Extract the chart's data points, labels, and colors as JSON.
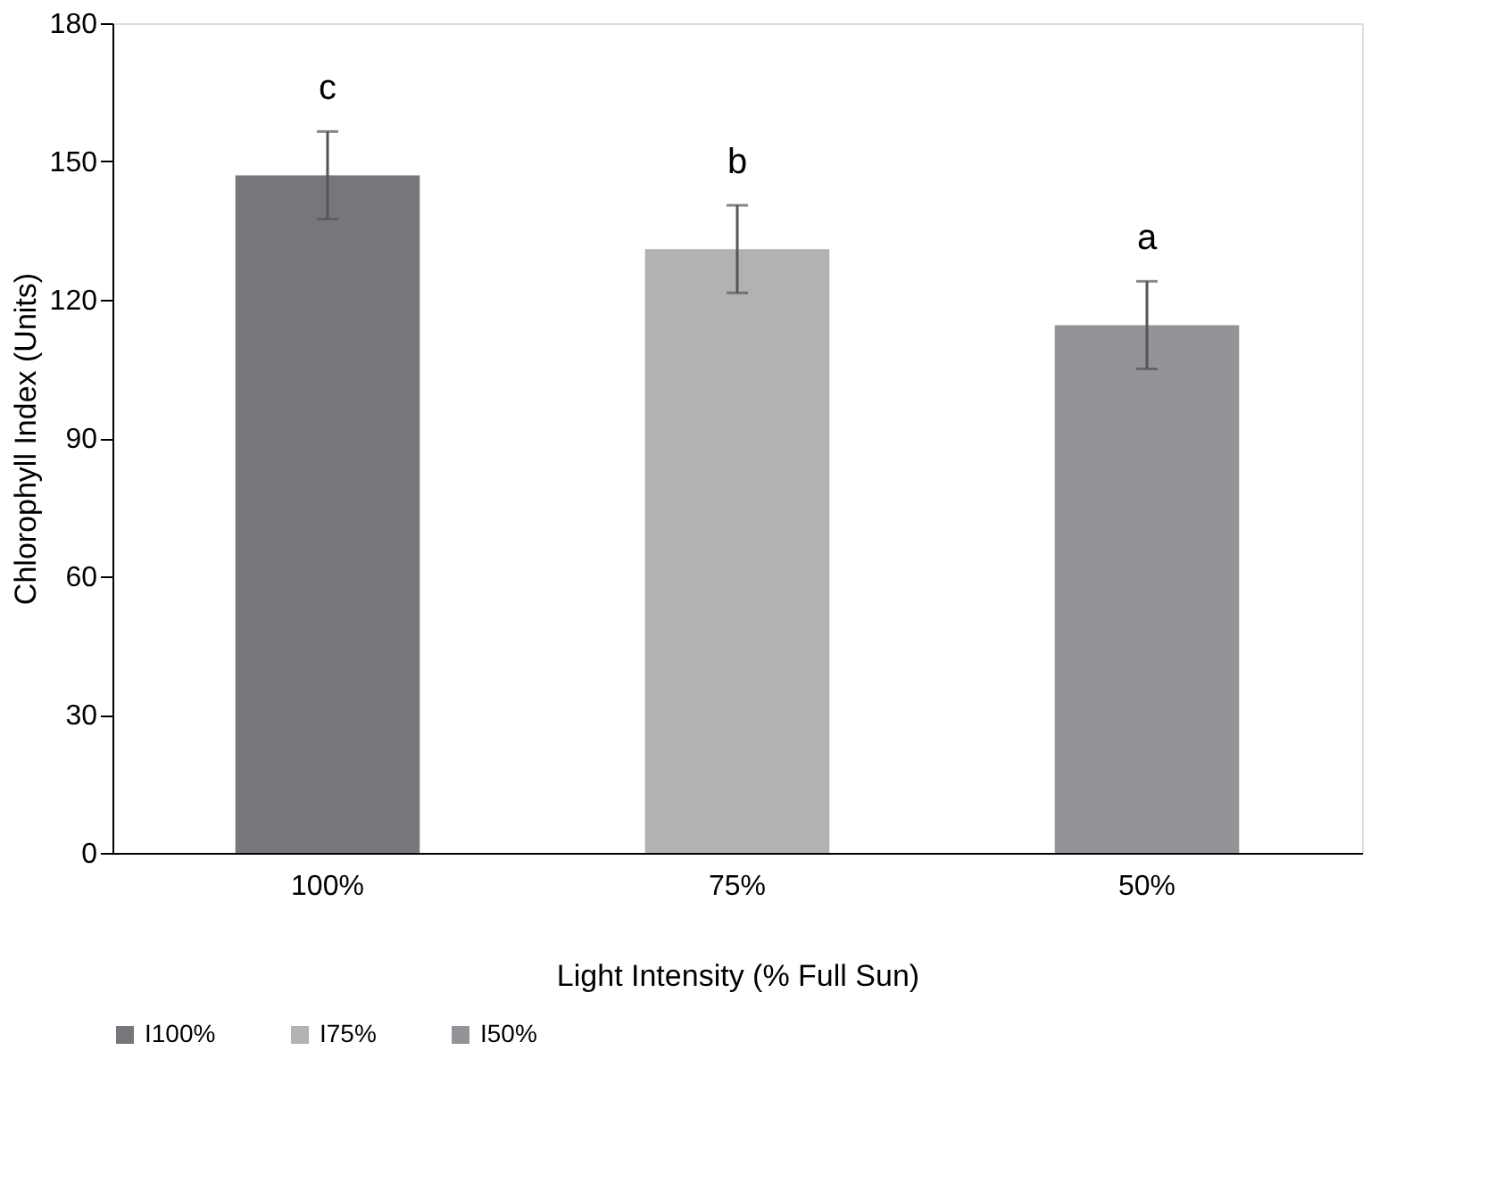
{
  "chart_data": {
    "type": "bar",
    "xlabel": "Light Intensity (% Full Sun)",
    "ylabel": "Chlorophyll Index (Units)",
    "categories": [
      "100%",
      "75%",
      "50%"
    ],
    "series": [
      {
        "name": "I100%",
        "color": "#76777b",
        "values": [
          147,
          null,
          null
        ],
        "errors": [
          9.5,
          null,
          null
        ]
      },
      {
        "name": "I75%",
        "color": "#b1b2b4",
        "values": [
          null,
          131,
          null
        ],
        "errors": [
          null,
          9.5,
          null
        ]
      },
      {
        "name": "I50%",
        "color": "#939497",
        "values": [
          null,
          null,
          114.5
        ],
        "errors": [
          null,
          null,
          9.5
        ]
      }
    ],
    "annotations": [
      {
        "text": "c",
        "x": "100%",
        "y": 156.5
      },
      {
        "text": "b",
        "x": "75%",
        "y": 140.5
      },
      {
        "text": "a",
        "x": "50%",
        "y": 124
      }
    ],
    "ylim": [
      0,
      180
    ],
    "yticks": [
      0,
      30,
      60,
      90,
      120,
      150,
      180
    ],
    "grid": false,
    "legend": "bottom"
  }
}
